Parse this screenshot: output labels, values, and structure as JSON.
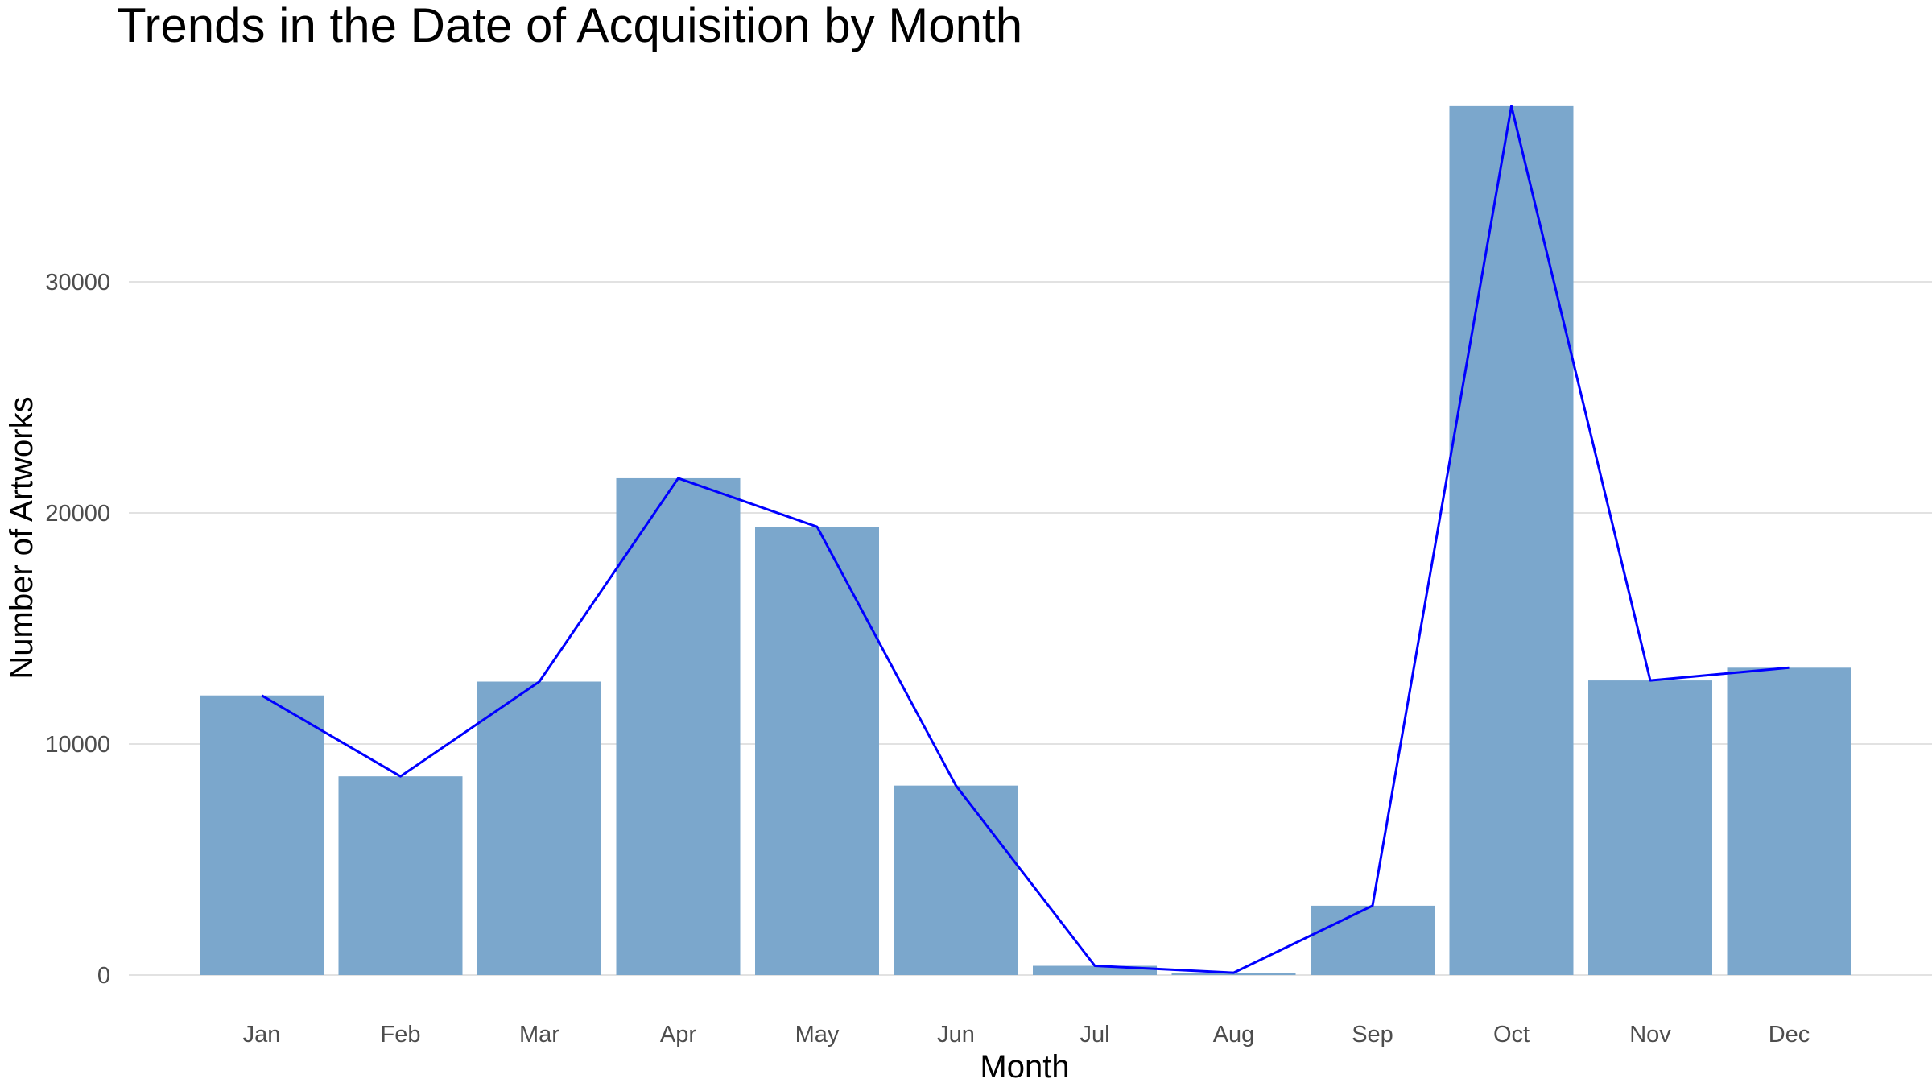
{
  "chart_data": {
    "type": "bar",
    "title": "Trends in the Date of Acquisition by Month",
    "xlabel": "Month",
    "ylabel": "Number of Artworks",
    "categories": [
      "Jan",
      "Feb",
      "Mar",
      "Apr",
      "May",
      "Jun",
      "Jul",
      "Aug",
      "Sep",
      "Oct",
      "Nov",
      "Dec"
    ],
    "values": [
      12100,
      8600,
      12700,
      21500,
      19400,
      8200,
      400,
      100,
      3000,
      37600,
      12750,
      13300
    ],
    "overlay_line": true,
    "ylim": [
      0,
      37600
    ],
    "yticks": [
      0,
      10000,
      20000,
      30000
    ],
    "ytick_labels": [
      "0",
      "10000",
      "20000",
      "30000"
    ],
    "grid": "horizontal major",
    "legend": "none",
    "colors": {
      "bar": "#7ba7cc",
      "line": "#0000ff",
      "grid": "#d9d9d9"
    }
  }
}
